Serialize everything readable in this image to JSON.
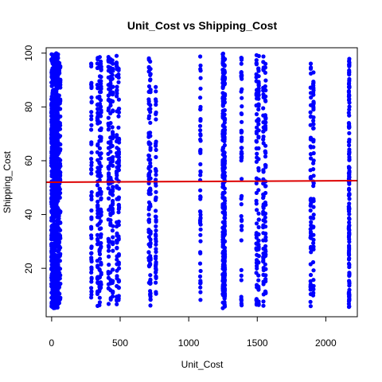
{
  "chart_data": {
    "type": "scatter",
    "title": "Unit_Cost vs Shipping_Cost",
    "xlabel": "Unit_Cost",
    "ylabel": "Shipping_Cost",
    "xlim": [
      -40,
      2230
    ],
    "ylim": [
      2,
      102
    ],
    "xticks": [
      0,
      500,
      1000,
      1500,
      2000
    ],
    "yticks": [
      20,
      40,
      60,
      80,
      100
    ],
    "grid": false,
    "point_color": "#0000ff",
    "trend_color": "#dd0000",
    "trend_line": {
      "x": [
        -40,
        2230
      ],
      "y": [
        52.0,
        52.6
      ]
    },
    "clusters": [
      {
        "x": 0,
        "y_min": 5,
        "y_max": 100,
        "dense": true
      },
      {
        "x": 8,
        "y_min": 5,
        "y_max": 100,
        "dense": true
      },
      {
        "x": 16,
        "y_min": 5,
        "y_max": 100,
        "dense": true
      },
      {
        "x": 25,
        "y_min": 5,
        "y_max": 100,
        "dense": true
      },
      {
        "x": 35,
        "y_min": 5,
        "y_max": 100,
        "dense": true
      },
      {
        "x": 45,
        "y_min": 5,
        "y_max": 100,
        "dense": true
      },
      {
        "x": 55,
        "y_min": 6,
        "y_max": 99,
        "dense": false
      },
      {
        "x": 62,
        "y_min": 7,
        "y_max": 97,
        "dense": false
      },
      {
        "x": 290,
        "y_min": 9,
        "y_max": 97,
        "dense": false
      },
      {
        "x": 335,
        "y_min": 6,
        "y_max": 100,
        "dense": false
      },
      {
        "x": 350,
        "y_min": 6,
        "y_max": 100,
        "dense": false
      },
      {
        "x": 360,
        "y_min": 7,
        "y_max": 98,
        "dense": false
      },
      {
        "x": 415,
        "y_min": 6,
        "y_max": 99,
        "dense": false
      },
      {
        "x": 430,
        "y_min": 6,
        "y_max": 100,
        "dense": false
      },
      {
        "x": 445,
        "y_min": 8,
        "y_max": 98,
        "dense": false
      },
      {
        "x": 475,
        "y_min": 6,
        "y_max": 99,
        "dense": false
      },
      {
        "x": 490,
        "y_min": 7,
        "y_max": 96,
        "dense": false
      },
      {
        "x": 710,
        "y_min": 6,
        "y_max": 100,
        "dense": false
      },
      {
        "x": 720,
        "y_min": 6,
        "y_max": 99,
        "dense": false
      },
      {
        "x": 760,
        "y_min": 6,
        "y_max": 90,
        "dense": false
      },
      {
        "x": 1085,
        "y_min": 8,
        "y_max": 99,
        "dense": false
      },
      {
        "x": 1250,
        "y_min": 5,
        "y_max": 100,
        "dense": true
      },
      {
        "x": 1262,
        "y_min": 5,
        "y_max": 100,
        "dense": true
      },
      {
        "x": 1385,
        "y_min": 6,
        "y_max": 99,
        "dense": false
      },
      {
        "x": 1495,
        "y_min": 6,
        "y_max": 100,
        "dense": false
      },
      {
        "x": 1510,
        "y_min": 6,
        "y_max": 99,
        "dense": false
      },
      {
        "x": 1545,
        "y_min": 6,
        "y_max": 99,
        "dense": false
      },
      {
        "x": 1560,
        "y_min": 8,
        "y_max": 99,
        "dense": false
      },
      {
        "x": 1890,
        "y_min": 5,
        "y_max": 98,
        "dense": false
      },
      {
        "x": 1910,
        "y_min": 8,
        "y_max": 93,
        "dense": false
      },
      {
        "x": 2170,
        "y_min": 5,
        "y_max": 99,
        "dense": true
      }
    ]
  }
}
